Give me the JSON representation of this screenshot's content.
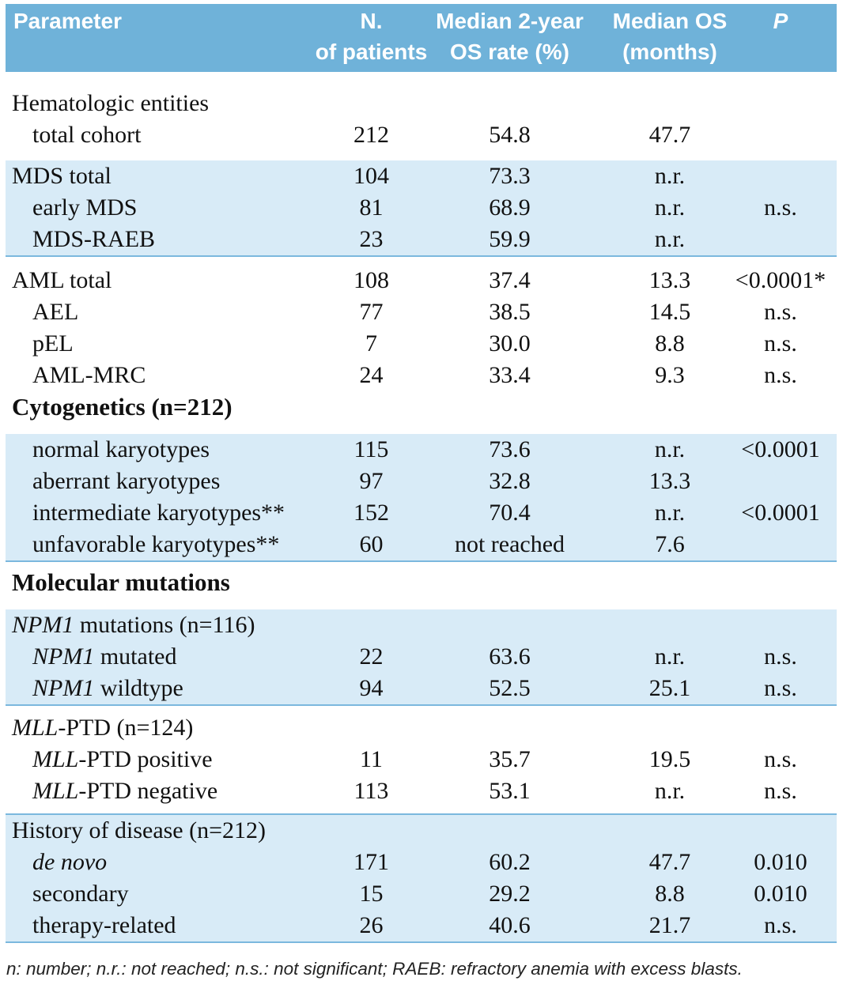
{
  "header": {
    "parameter": "Parameter",
    "n_line1": "N.",
    "n_line2": "of patients",
    "rate_line1": "Median 2-year",
    "rate_line2": "OS rate (%)",
    "os_line1": "Median OS",
    "os_line2": "(months)",
    "p": "P"
  },
  "sections": {
    "hematologic": "Hematologic entities",
    "cytogenetics": "Cytogenetics (n=212)",
    "molecular": "Molecular mutations"
  },
  "rows": {
    "total_cohort": {
      "label": "total cohort",
      "n": "212",
      "rate": "54.8",
      "os": "47.7",
      "p": ""
    },
    "mds_total": {
      "label": "MDS total",
      "n": "104",
      "rate": "73.3",
      "os": "n.r.",
      "p": ""
    },
    "early_mds": {
      "label": "early MDS",
      "n": "81",
      "rate": "68.9",
      "os": "n.r.",
      "p": "n.s."
    },
    "mds_raeb": {
      "label": "MDS-RAEB",
      "n": "23",
      "rate": "59.9",
      "os": "n.r.",
      "p": ""
    },
    "aml_total": {
      "label": "AML total",
      "n": "108",
      "rate": "37.4",
      "os": "13.3",
      "p": "<0.0001*"
    },
    "ael": {
      "label": "AEL",
      "n": "77",
      "rate": "38.5",
      "os": "14.5",
      "p": "n.s."
    },
    "pel": {
      "label": "pEL",
      "n": "7",
      "rate": "30.0",
      "os": "8.8",
      "p": "n.s."
    },
    "aml_mrc": {
      "label": "AML-MRC",
      "n": "24",
      "rate": "33.4",
      "os": "9.3",
      "p": "n.s."
    },
    "normal_karyo": {
      "label": "normal karyotypes",
      "n": "115",
      "rate": "73.6",
      "os": "n.r.",
      "p": "<0.0001"
    },
    "aberrant_karyo": {
      "label": "aberrant karyotypes",
      "n": "97",
      "rate": "32.8",
      "os": "13.3",
      "p": ""
    },
    "intermediate_karyo": {
      "label": "intermediate karyotypes**",
      "n": "152",
      "rate": "70.4",
      "os": "n.r.",
      "p": "<0.0001"
    },
    "unfavorable_karyo": {
      "label": "unfavorable karyotypes**",
      "n": "60",
      "rate": "not reached",
      "os": "7.6",
      "p": ""
    },
    "npm1_group": {
      "label_gene": "NPM1",
      "label_rest": " mutations (n=116)"
    },
    "npm1_mut": {
      "label_gene": "NPM1",
      "label_rest": " mutated",
      "n": "22",
      "rate": "63.6",
      "os": "n.r.",
      "p": "n.s."
    },
    "npm1_wt": {
      "label_gene": "NPM1",
      "label_rest": " wildtype",
      "n": "94",
      "rate": "52.5",
      "os": "25.1",
      "p": "n.s."
    },
    "mll_group": {
      "label_gene": "MLL",
      "label_rest": "-PTD (n=124)"
    },
    "mll_pos": {
      "label_gene": "MLL",
      "label_rest": "-PTD positive",
      "n": "11",
      "rate": "35.7",
      "os": "19.5",
      "p": "n.s."
    },
    "mll_neg": {
      "label_gene": "MLL",
      "label_rest": "-PTD negative",
      "n": "113",
      "rate": "53.1",
      "os": "n.r.",
      "p": "n.s."
    },
    "history_group": {
      "label": "History of disease (n=212)"
    },
    "de_novo": {
      "label": "de novo",
      "n": "171",
      "rate": "60.2",
      "os": "47.7",
      "p": "0.010"
    },
    "secondary": {
      "label": "secondary",
      "n": "15",
      "rate": "29.2",
      "os": "8.8",
      "p": "0.010"
    },
    "therapy_related": {
      "label": "therapy-related",
      "n": "26",
      "rate": "40.6",
      "os": "21.7",
      "p": "n.s."
    }
  },
  "footnote": "n: number; n.r.: not reached; n.s.: not significant; RAEB: refractory anemia with excess blasts.",
  "colors": {
    "header_bg": "#6fb2d9",
    "shade_bg": "#d8ebf7",
    "rule": "#7bb8de"
  }
}
